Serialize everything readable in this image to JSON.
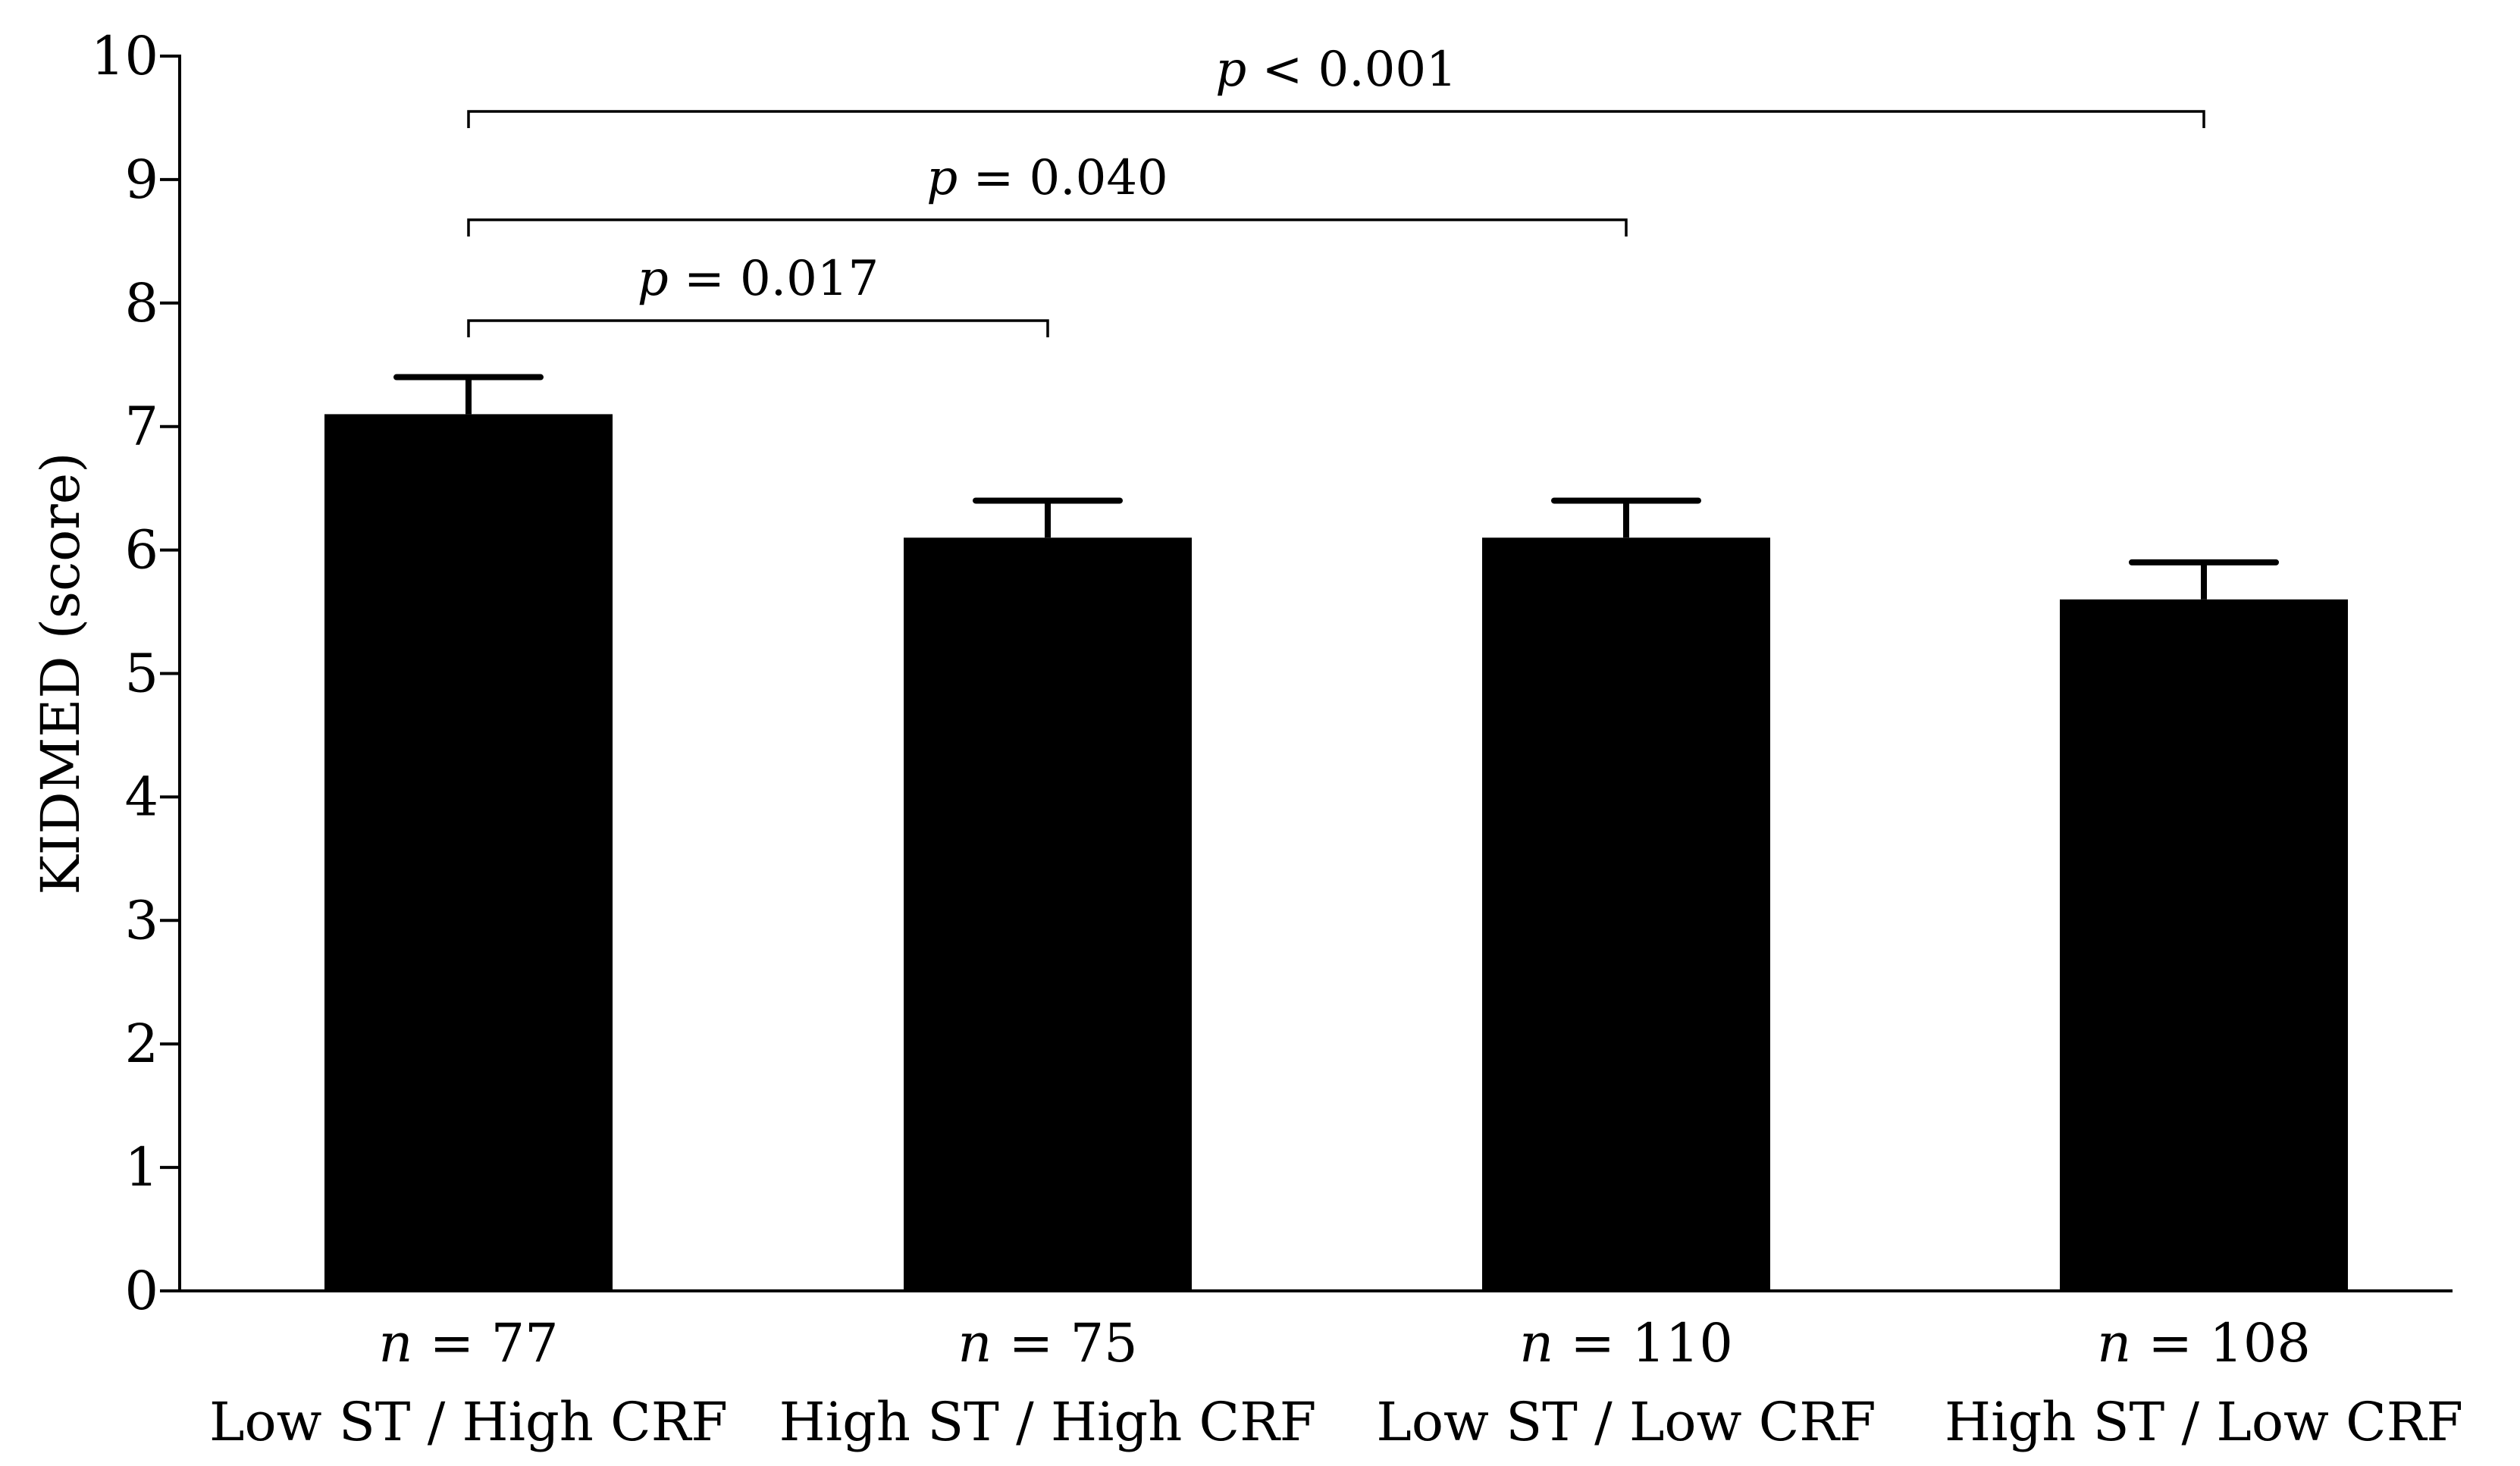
{
  "chart_data": {
    "type": "bar",
    "title": "",
    "xlabel": "",
    "ylabel": "KIDMED (score)",
    "ylim": [
      0,
      10
    ],
    "yticks": [
      "0",
      "1",
      "2",
      "3",
      "4",
      "5",
      "6",
      "7",
      "8",
      "9",
      "10"
    ],
    "categories": [
      "Low ST /  High CRF",
      "High ST /  High CRF",
      "Low ST /  Low CRF",
      "High ST /  Low CRF"
    ],
    "values": [
      7.1,
      6.1,
      6.1,
      5.6
    ],
    "error_upper": [
      7.4,
      6.4,
      6.4,
      5.9
    ],
    "n_prefix": "n",
    "n_labels": [
      "= 77",
      "= 75",
      "= 110",
      "= 108"
    ],
    "bar_color": "#000000",
    "comparisons": [
      {
        "from": 0,
        "to": 1,
        "p_prefix": "p",
        "label": "= 0.017"
      },
      {
        "from": 0,
        "to": 2,
        "p_prefix": "p",
        "label": "= 0.040"
      },
      {
        "from": 0,
        "to": 3,
        "p_prefix": "p",
        "label": "< 0.001"
      }
    ]
  }
}
